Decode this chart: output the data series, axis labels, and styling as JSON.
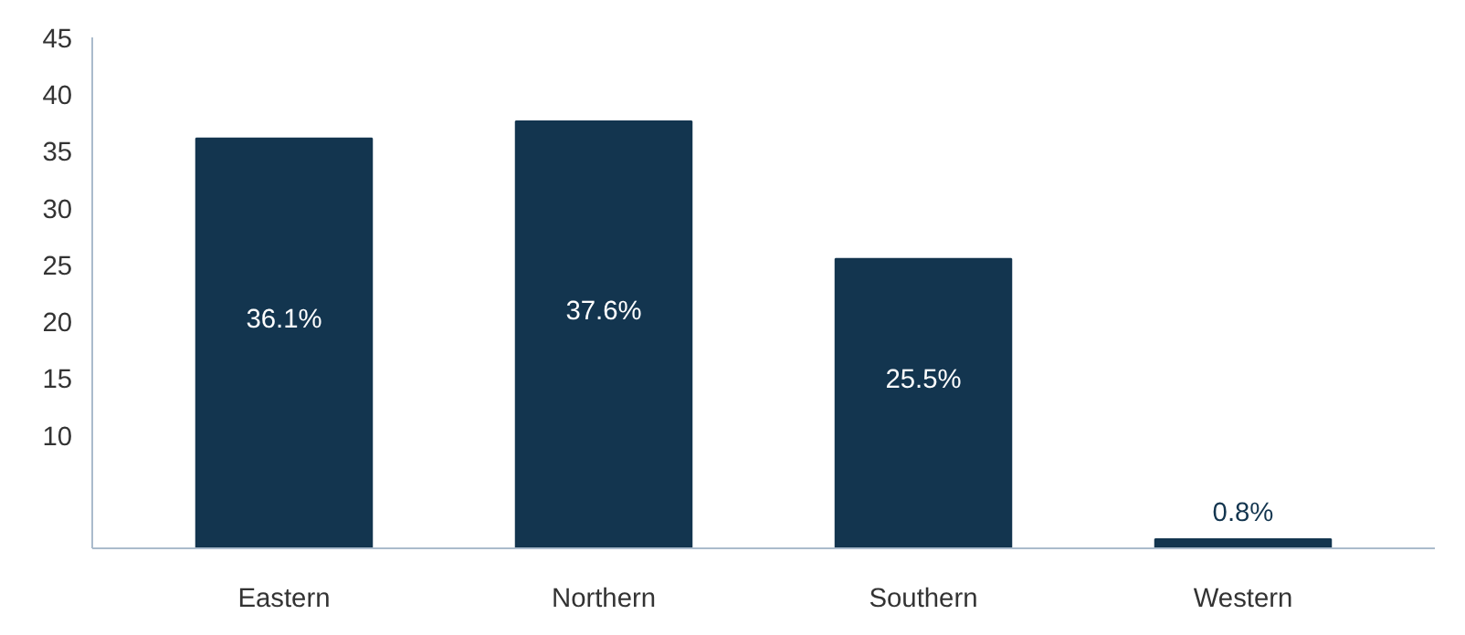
{
  "chart_data": {
    "type": "bar",
    "categories": [
      "Eastern",
      "Northern",
      "Southern",
      "Western"
    ],
    "values": [
      36.1,
      37.6,
      25.5,
      0.8
    ],
    "value_labels": [
      "36.1%",
      "37.6%",
      "25.5%",
      "0.8%"
    ],
    "color": "#13354f",
    "ylim": [
      0,
      45
    ],
    "yticks": [
      10,
      15,
      20,
      25,
      30,
      35,
      40,
      45
    ],
    "grid": false
  }
}
